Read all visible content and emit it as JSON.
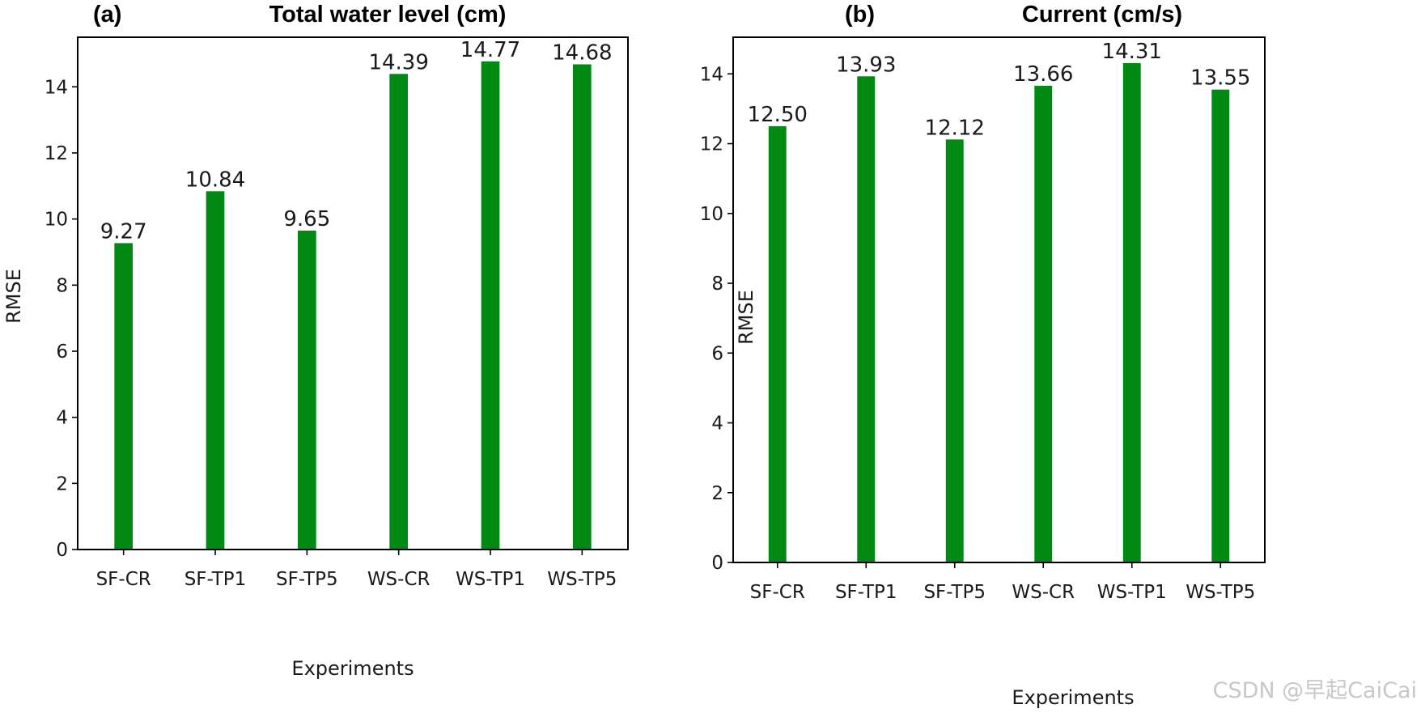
{
  "chart_data": [
    {
      "type": "bar",
      "panel_label": "(a)",
      "title": "Total water level (cm)",
      "xlabel": "Experiments",
      "ylabel": "RMSE",
      "categories": [
        "SF-CR",
        "SF-TP1",
        "SF-TP5",
        "WS-CR",
        "WS-TP1",
        "WS-TP5"
      ],
      "values": [
        9.27,
        10.84,
        9.65,
        14.39,
        14.77,
        14.68
      ],
      "value_labels": [
        "9.27",
        "10.84",
        "9.65",
        "14.39",
        "14.77",
        "14.68"
      ],
      "ylim": [
        0,
        15.5
      ],
      "yticks": [
        0,
        2,
        4,
        6,
        8,
        10,
        12,
        14
      ],
      "bar_color": "#008a14",
      "grid": false
    },
    {
      "type": "bar",
      "panel_label": "(b)",
      "title": "Current (cm/s)",
      "xlabel": "Experiments",
      "ylabel": "RMSE",
      "categories": [
        "SF-CR",
        "SF-TP1",
        "SF-TP5",
        "WS-CR",
        "WS-TP1",
        "WS-TP5"
      ],
      "values": [
        12.5,
        13.93,
        12.12,
        13.66,
        14.31,
        13.55
      ],
      "value_labels": [
        "12.50",
        "13.93",
        "12.12",
        "13.66",
        "14.31",
        "13.55"
      ],
      "ylim": [
        0,
        15.05
      ],
      "yticks": [
        0,
        2,
        4,
        6,
        8,
        10,
        12,
        14
      ],
      "bar_color": "#008a14",
      "grid": false
    }
  ],
  "watermark": "CSDN @早起CaiCai"
}
